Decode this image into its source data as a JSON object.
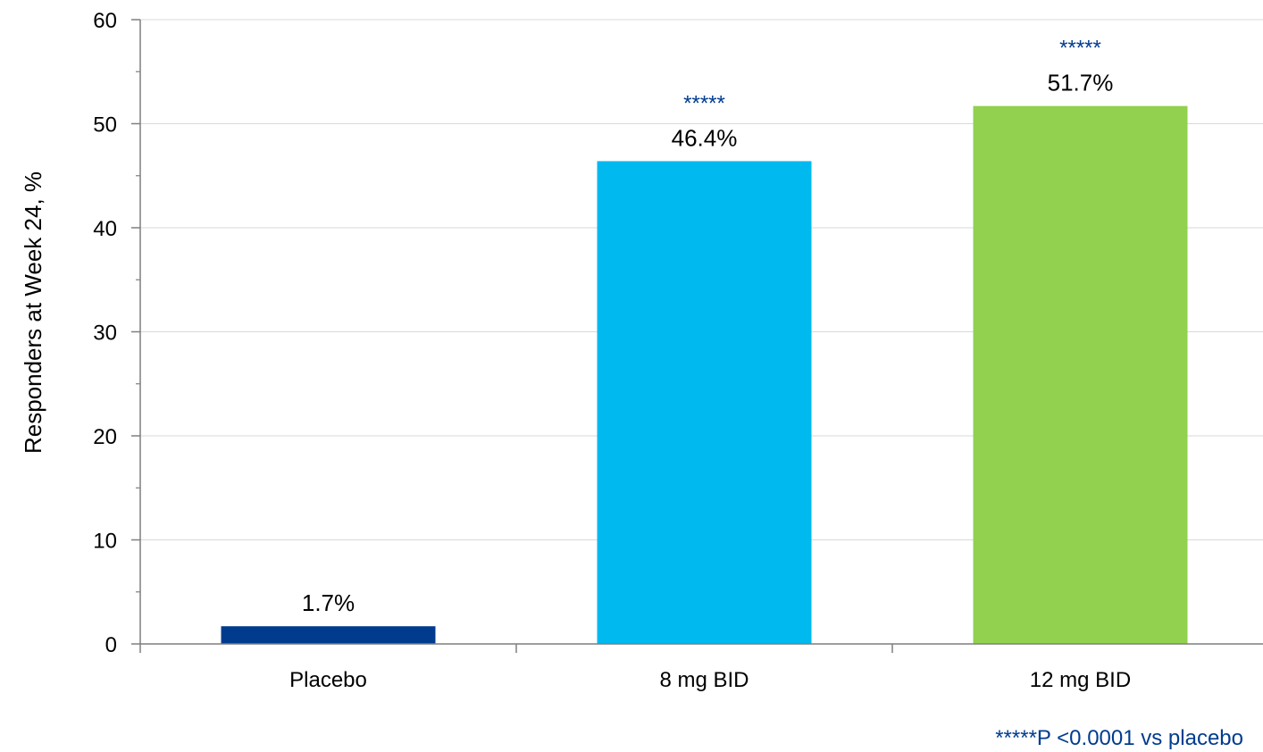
{
  "chart_data": {
    "type": "bar",
    "ylabel": "Responders at Week 24, %",
    "ylim": [
      0,
      60
    ],
    "yticks": [
      0,
      10,
      20,
      30,
      40,
      50,
      60
    ],
    "grid": true,
    "categories": [
      "Placebo",
      "8 mg BID",
      "12 mg BID"
    ],
    "values": [
      1.7,
      46.4,
      51.7
    ],
    "value_labels": [
      "1.7%",
      "46.4%",
      "51.7%"
    ],
    "significance_markers": [
      "",
      "*****",
      "*****"
    ],
    "bar_colors": [
      "#003b8e",
      "#00b9ef",
      "#92d050"
    ],
    "footnote": "*****P <0.0001 vs placebo"
  },
  "colors": {
    "significance": "#003c8f",
    "grid": "#d9d9d9",
    "axis": "#7f7f7f"
  }
}
